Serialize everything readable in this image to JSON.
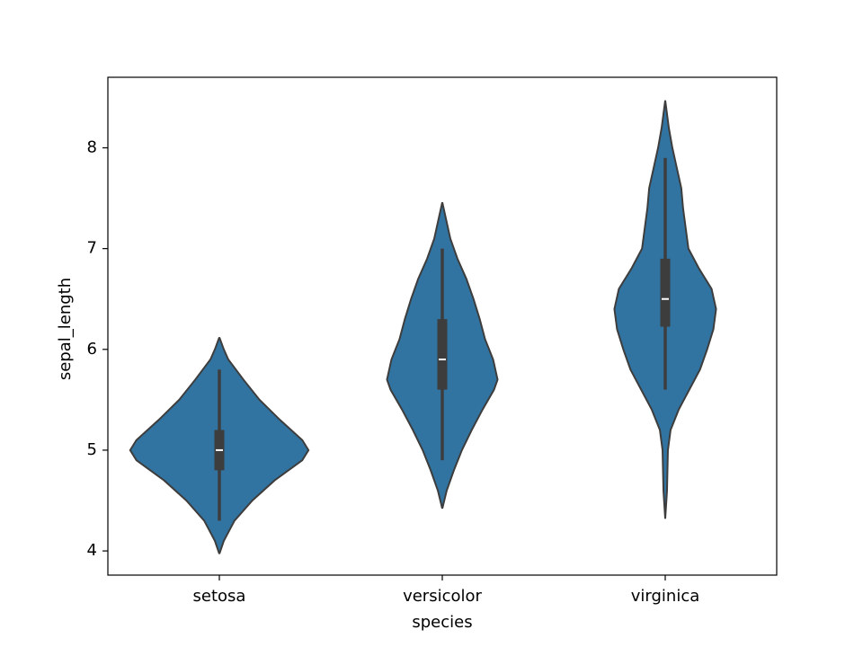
{
  "chart_data": {
    "type": "violin",
    "x_label": "species",
    "y_label": "sepal_length",
    "categories": [
      "setosa",
      "versicolor",
      "virginica"
    ],
    "color": "#3274a1",
    "ylim": [
      3.76,
      8.7
    ],
    "yticks": [
      4,
      5,
      6,
      7,
      8
    ],
    "violins": [
      {
        "grid": [
          3.97,
          4.1,
          4.3,
          4.5,
          4.7,
          4.9,
          5.0,
          5.1,
          5.3,
          5.5,
          5.7,
          5.9,
          6.0,
          6.12
        ],
        "density": [
          0,
          0.05,
          0.17,
          0.37,
          0.62,
          0.93,
          1.0,
          0.93,
          0.68,
          0.45,
          0.27,
          0.1,
          0.05,
          0
        ],
        "whisker_low": 4.3,
        "q1": 4.8,
        "median": 5.0,
        "q3": 5.2,
        "whisker_high": 5.8
      },
      {
        "grid": [
          4.42,
          4.6,
          4.8,
          5.0,
          5.2,
          5.4,
          5.6,
          5.7,
          5.9,
          6.1,
          6.3,
          6.5,
          6.7,
          6.9,
          7.1,
          7.3,
          7.46
        ],
        "density": [
          0,
          0.05,
          0.13,
          0.22,
          0.33,
          0.45,
          0.58,
          0.62,
          0.57,
          0.48,
          0.42,
          0.35,
          0.27,
          0.17,
          0.09,
          0.04,
          0
        ],
        "whisker_low": 4.9,
        "q1": 5.6,
        "median": 5.9,
        "q3": 6.3,
        "whisker_high": 7.0
      },
      {
        "grid": [
          4.32,
          4.6,
          5.0,
          5.2,
          5.4,
          5.6,
          5.8,
          6.0,
          6.2,
          6.4,
          6.6,
          6.8,
          7.0,
          7.2,
          7.4,
          7.6,
          7.8,
          8.0,
          8.2,
          8.47
        ],
        "density": [
          0,
          0.02,
          0.03,
          0.06,
          0.15,
          0.27,
          0.39,
          0.47,
          0.54,
          0.57,
          0.52,
          0.38,
          0.26,
          0.23,
          0.2,
          0.18,
          0.13,
          0.08,
          0.04,
          0
        ],
        "whisker_low": 5.6,
        "q1": 6.225,
        "median": 6.5,
        "q3": 6.9,
        "whisker_high": 7.9
      }
    ]
  }
}
